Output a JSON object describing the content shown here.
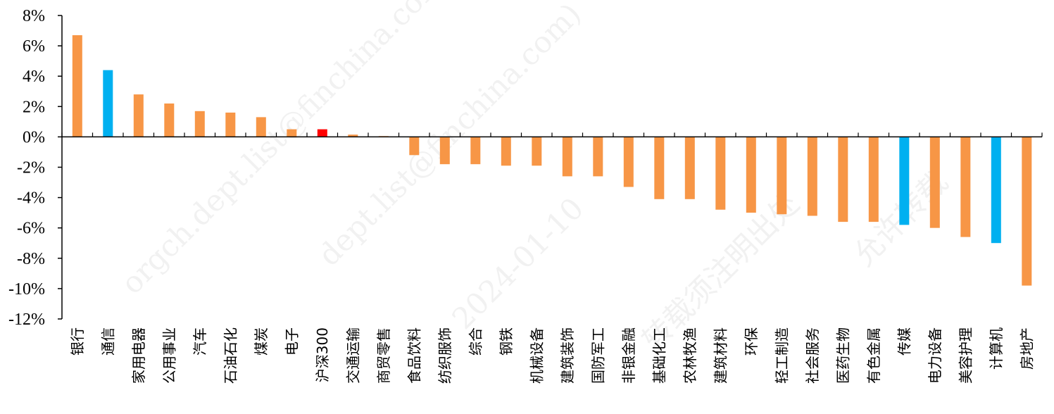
{
  "chart_data": {
    "type": "bar",
    "title": "",
    "xlabel": "",
    "ylabel": "",
    "ylim": [
      -12,
      8
    ],
    "yticks": [
      "8%",
      "6%",
      "4%",
      "2%",
      "0%",
      "-2%",
      "-4%",
      "-6%",
      "-8%",
      "-10%",
      "-12%"
    ],
    "categories": [
      "银行",
      "通信",
      "家用电器",
      "公用事业",
      "汽车",
      "石油石化",
      "煤炭",
      "电子",
      "沪深300",
      "交通运输",
      "商贸零售",
      "食品饮料",
      "纺织服饰",
      "综合",
      "钢铁",
      "机械设备",
      "建筑装饰",
      "国防军工",
      "非银金融",
      "基础化工",
      "农林牧渔",
      "建筑材料",
      "环保",
      "轻工制造",
      "社会服务",
      "医药生物",
      "有色金属",
      "传媒",
      "电力设备",
      "美容护理",
      "计算机",
      "房地产"
    ],
    "values": [
      6.7,
      4.4,
      2.8,
      2.2,
      1.7,
      1.6,
      1.3,
      0.5,
      0.5,
      0.15,
      0.05,
      -1.2,
      -1.8,
      -1.8,
      -1.9,
      -1.9,
      -2.6,
      -2.6,
      -3.3,
      -4.1,
      -4.1,
      -4.8,
      -5.0,
      -5.1,
      -5.2,
      -5.6,
      -5.6,
      -5.8,
      -6.0,
      -6.6,
      -7.0,
      -9.8
    ],
    "highlight": {
      "通信": "blue",
      "传媒": "blue",
      "计算机": "blue",
      "沪深300": "red"
    },
    "grid": false,
    "legend": "none"
  },
  "colors": {
    "default": "#F79646",
    "blue": "#00B0F0",
    "red": "#FF0000",
    "axis": "#000000"
  },
  "watermarks": [
    "orgch.dept.list@finchina.com)",
    "dept.list@finchina.com)",
    "2024-01-10",
    "转载须注明出处",
    "允许转载"
  ]
}
